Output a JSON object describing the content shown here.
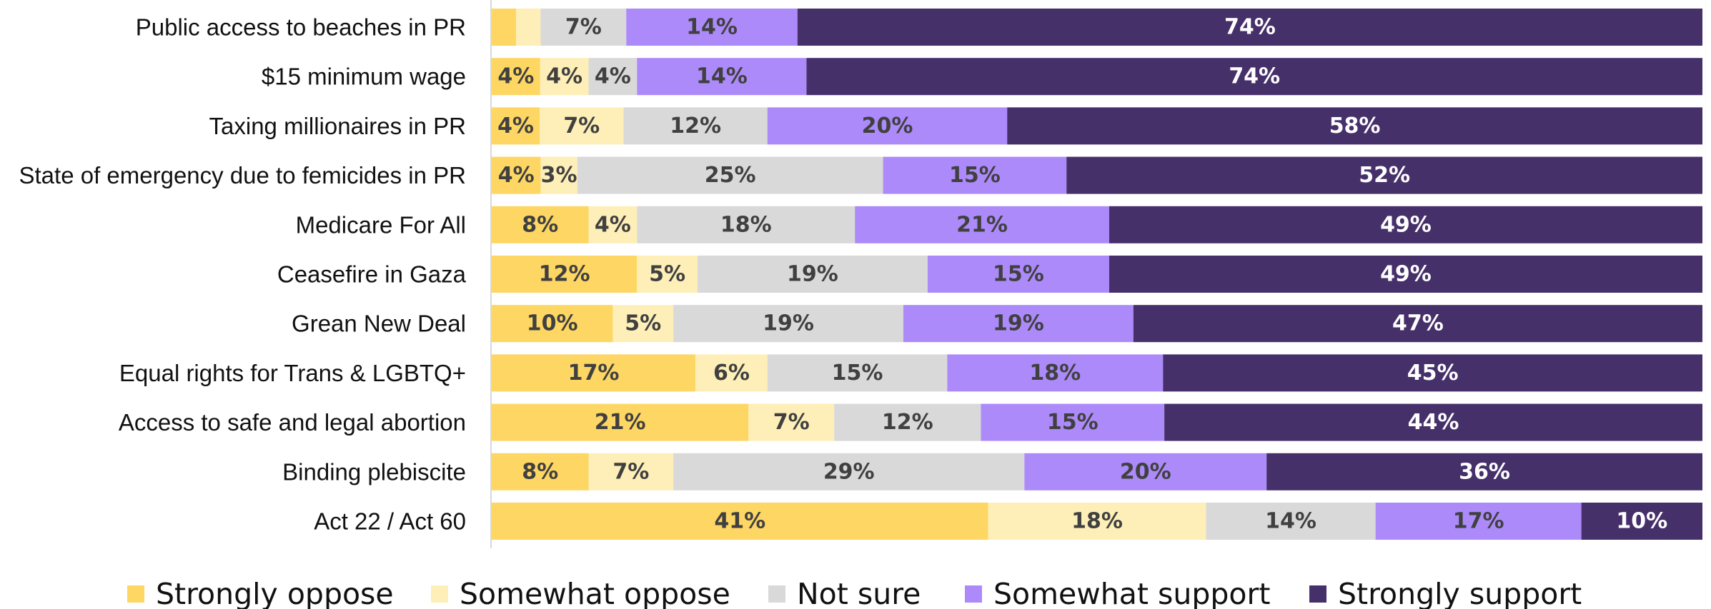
{
  "chart_data": {
    "type": "bar",
    "orientation": "horizontal",
    "stacked": true,
    "grid": false,
    "legend_position": "bottom",
    "xlim": [
      0,
      100
    ],
    "value_suffix": "%",
    "categories": [
      "Public access to beaches in PR",
      "$15 minimum wage",
      "Taxing millionaires in PR",
      "State of emergency due to femicides in PR",
      "Medicare For All",
      "Ceasefire in Gaza",
      "Grean New Deal",
      "Equal rights for Trans & LGBTQ+",
      "Access to safe and legal abortion",
      "Binding plebiscite",
      "Act 22 / Act 60"
    ],
    "series": [
      {
        "name": "Strongly oppose",
        "color": "#FDD663",
        "label_color": "#404040",
        "values": [
          2,
          4,
          4,
          4,
          8,
          12,
          10,
          17,
          21,
          8,
          41
        ],
        "labels": [
          "",
          "4%",
          "4%",
          "4%",
          "8%",
          "12%",
          "10%",
          "17%",
          "21%",
          "8%",
          "41%"
        ]
      },
      {
        "name": "Somewhat oppose",
        "color": "#FEEFB8",
        "label_color": "#404040",
        "values": [
          2,
          4,
          7,
          3,
          4,
          5,
          5,
          6,
          7,
          7,
          18
        ],
        "labels": [
          "",
          "4%",
          "7%",
          "3%",
          "4%",
          "5%",
          "5%",
          "6%",
          "7%",
          "7%",
          "18%"
        ]
      },
      {
        "name": "Not sure",
        "color": "#D9D9D9",
        "label_color": "#404040",
        "values": [
          7,
          4,
          12,
          25,
          18,
          19,
          19,
          15,
          12,
          29,
          14
        ],
        "labels": [
          "7%",
          "4%",
          "12%",
          "25%",
          "18%",
          "19%",
          "19%",
          "15%",
          "12%",
          "29%",
          "14%"
        ]
      },
      {
        "name": "Somewhat support",
        "color": "#AD8AFA",
        "label_color": "#404040",
        "values": [
          14,
          14,
          20,
          15,
          21,
          15,
          19,
          18,
          15,
          20,
          17
        ],
        "labels": [
          "14%",
          "14%",
          "20%",
          "15%",
          "21%",
          "15%",
          "19%",
          "18%",
          "15%",
          "20%",
          "17%"
        ]
      },
      {
        "name": "Strongly support",
        "color": "#46306A",
        "label_color": "#ffffff",
        "values": [
          74,
          74,
          58,
          52,
          49,
          49,
          47,
          45,
          44,
          36,
          10
        ],
        "labels": [
          "74%",
          "74%",
          "58%",
          "52%",
          "49%",
          "49%",
          "47%",
          "45%",
          "44%",
          "36%",
          "10%"
        ]
      }
    ]
  }
}
